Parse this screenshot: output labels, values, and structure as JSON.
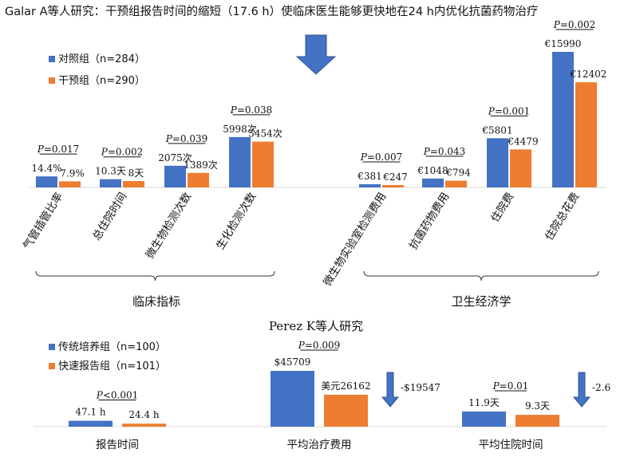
{
  "header": {
    "title": "Galar A等人研究：干预组报告时间的缩短（17.6 h）使临床医生能够更快地在24 h内优化抗菌药物治疗"
  },
  "chart_data": [
    {
      "type": "bar",
      "title": "",
      "series": [
        {
          "name": "对照组（n=284）",
          "color": "#4472C4"
        },
        {
          "name": "干预组（n=290）",
          "color": "#ED7D31"
        }
      ],
      "groups": [
        {
          "name": "临床指标",
          "items": [
            {
              "category": "气管插管比率",
              "p": "P=0.017",
              "labels": [
                "14.4%",
                "7.9%"
              ],
              "values": [
                14.4,
                7.9
              ]
            },
            {
              "category": "总住院时间",
              "p": "P=0.002",
              "labels": [
                "10.3天",
                "8天"
              ],
              "values": [
                10.3,
                8
              ]
            },
            {
              "category": "微生物检测次数",
              "p": "P=0.039",
              "labels": [
                "2075次",
                "1389次"
              ],
              "values": [
                2075,
                1389
              ]
            },
            {
              "category": "生化检测次数",
              "p": "P=0.038",
              "labels": [
                "5998次",
                "5454次"
              ],
              "values": [
                5998,
                5454
              ]
            }
          ]
        },
        {
          "name": "卫生经济学",
          "items": [
            {
              "category": "微生物实验室检测费用",
              "p": "P=0.007",
              "labels": [
                "€381",
                "€247"
              ],
              "values": [
                381,
                247
              ]
            },
            {
              "category": "抗菌药物费用",
              "p": "P=0.043",
              "labels": [
                "€1048",
                "€794"
              ],
              "values": [
                1048,
                794
              ]
            },
            {
              "category": "住院费",
              "p": "P=0.001",
              "labels": [
                "€5801",
                "€4479"
              ],
              "values": [
                5801,
                4479
              ]
            },
            {
              "category": "住院总花费",
              "p": "P=0.002",
              "labels": [
                "€15990",
                "€12402"
              ],
              "values": [
                15990,
                12402
              ]
            }
          ]
        }
      ]
    },
    {
      "type": "bar",
      "title": "Perez K等人研究",
      "series": [
        {
          "name": "传统培养组（n=100）",
          "color": "#4472C4"
        },
        {
          "name": "快速报告组（n=101）",
          "color": "#ED7D31"
        }
      ],
      "items": [
        {
          "category": "报告时间",
          "p": "P<0.001",
          "labels": [
            "47.1 h",
            "24.4 h"
          ],
          "values": [
            47.1,
            24.4
          ],
          "diff": ""
        },
        {
          "category": "平均治疗费用",
          "p": "P=0.009",
          "labels": [
            "$45709",
            "美元26162"
          ],
          "values": [
            45709,
            26162
          ],
          "diff": "-$19547"
        },
        {
          "category": "平均住院时间",
          "p": "P=0.01",
          "labels": [
            "11.9天",
            "9.3天"
          ],
          "values": [
            11.9,
            9.3
          ],
          "diff": "-2.6"
        }
      ]
    }
  ]
}
